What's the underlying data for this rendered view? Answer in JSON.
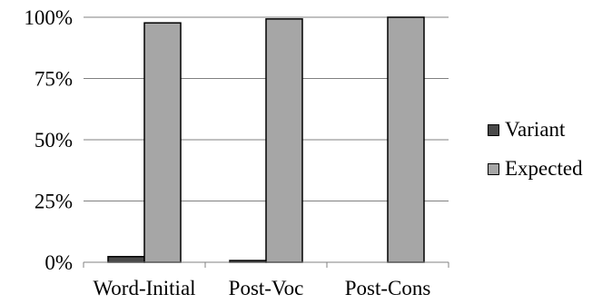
{
  "chart_data": {
    "type": "bar",
    "categories": [
      "Word-Initial",
      "Post-Voc",
      "Post-Cons"
    ],
    "series": [
      {
        "name": "Variant",
        "values": [
          2.3,
          0.7,
          0
        ],
        "color": "#4a4a4a"
      },
      {
        "name": "Expected",
        "values": [
          97.7,
          99.3,
          100
        ],
        "color": "#a6a6a6"
      }
    ],
    "ylim": [
      0,
      100
    ],
    "yticks": [
      "0%",
      "25%",
      "50%",
      "75%",
      "100%"
    ],
    "ytick_values": [
      0,
      25,
      50,
      75,
      100
    ],
    "grid": true,
    "legend_position": "right"
  }
}
